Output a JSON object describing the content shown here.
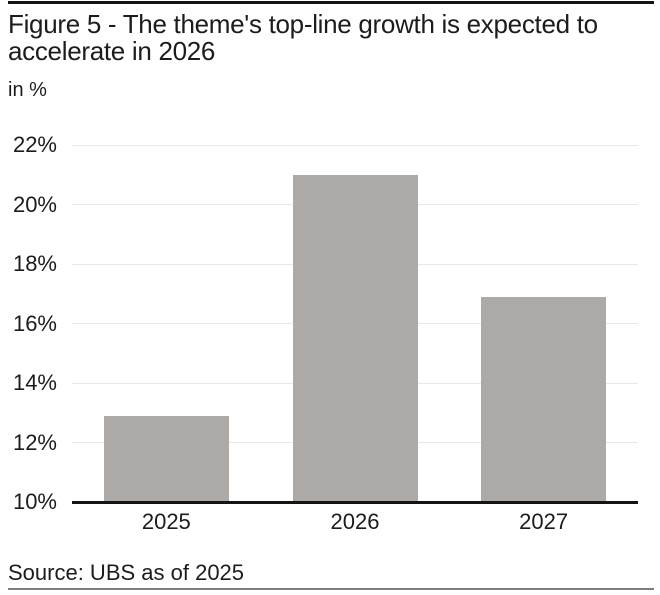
{
  "figure": {
    "title": "Figure 5 - The theme's top-line growth is expected to accelerate in 2026",
    "subtitle": "in %",
    "source": "Source: UBS as of 2025"
  },
  "chart_data": {
    "type": "bar",
    "categories": [
      "2025",
      "2026",
      "2027"
    ],
    "values": [
      12.9,
      21.0,
      16.9
    ],
    "title": "Figure 5 - The theme's top-line growth is expected to accelerate in 2026",
    "xlabel": "",
    "ylabel": "in %",
    "ylim": [
      10,
      22
    ],
    "yticks": [
      10,
      12,
      14,
      16,
      18,
      20,
      22
    ],
    "ytick_suffix": "%",
    "grid": true,
    "legend": false
  },
  "colors": {
    "text": "#1c1c1c",
    "bar": "#aca9a7",
    "gridline": "#eae8e7",
    "axis": "#141414",
    "top_rule": "#141414",
    "bottom_rule": "#7d7d7d",
    "background": "#ffffff"
  }
}
